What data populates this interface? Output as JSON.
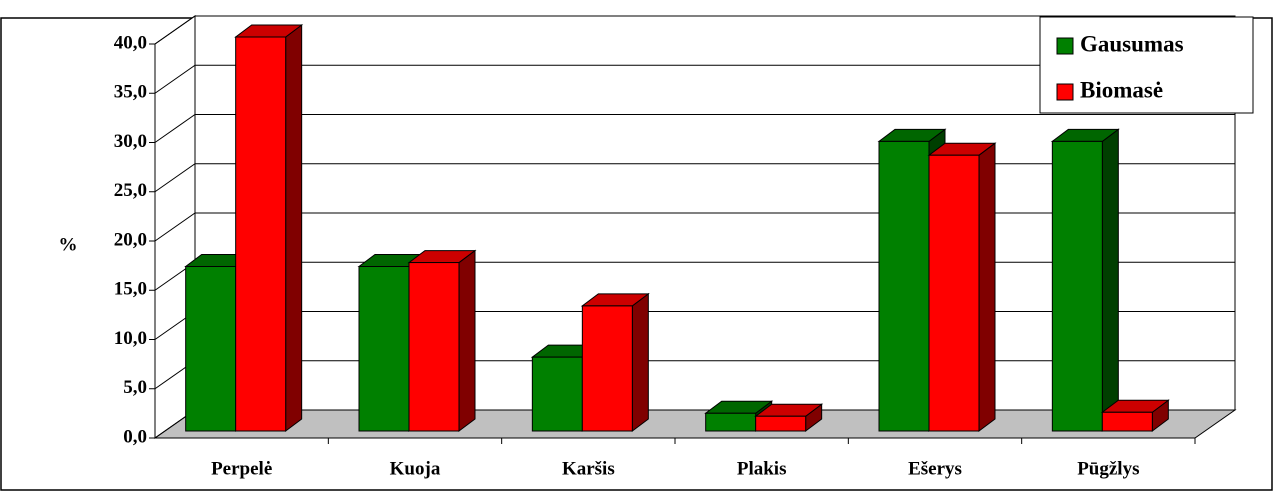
{
  "chart_data": {
    "type": "bar3d",
    "categories": [
      "Perpelė",
      "Kuoja",
      "Karšis",
      "Plakis",
      "Ešerys",
      "Pūgžlys"
    ],
    "series": [
      {
        "name": "Gausumas",
        "color": "#008000",
        "values": [
          16.7,
          16.7,
          7.5,
          1.8,
          29.4,
          29.4
        ]
      },
      {
        "name": "Biomasė",
        "color": "#ff0000",
        "values": [
          40.0,
          17.1,
          12.7,
          1.5,
          28.0,
          1.9
        ]
      }
    ],
    "y_label": "%",
    "ylim": [
      0,
      40
    ],
    "yticks": [
      {
        "value": 0,
        "label": "0,0"
      },
      {
        "value": 5,
        "label": "5,0"
      },
      {
        "value": 10,
        "label": "10,0"
      },
      {
        "value": 15,
        "label": "15,0"
      },
      {
        "value": 20,
        "label": "20,0"
      },
      {
        "value": 25,
        "label": "25,0"
      },
      {
        "value": 30,
        "label": "30,0"
      },
      {
        "value": 35,
        "label": "35,0"
      },
      {
        "value": 40,
        "label": "40,0"
      }
    ],
    "grid": true,
    "legend": "top-right"
  }
}
